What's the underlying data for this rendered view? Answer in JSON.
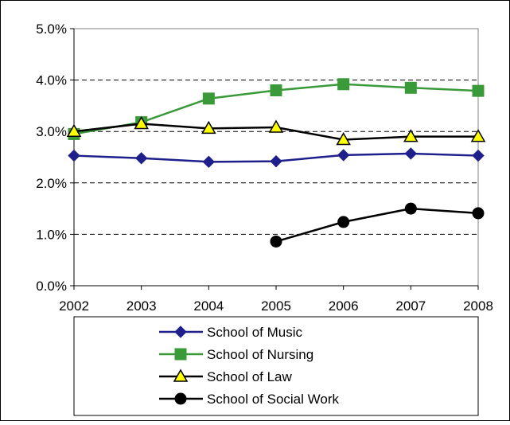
{
  "chart_data": {
    "type": "line",
    "title": "",
    "xlabel": "",
    "ylabel": "",
    "x": [
      2002,
      2003,
      2004,
      2005,
      2006,
      2007,
      2008
    ],
    "x_tick_labels": [
      "2002",
      "2003",
      "2004",
      "2005",
      "2006",
      "2007",
      "2008"
    ],
    "ylim": [
      0,
      0.05
    ],
    "y_ticks": [
      0,
      0.01,
      0.02,
      0.03,
      0.04,
      0.05
    ],
    "y_tick_labels": [
      "0.0%",
      "1.0%",
      "2.0%",
      "3.0%",
      "4.0%",
      "5.0%"
    ],
    "grid": "horizontal dashed",
    "legend_position": "bottom",
    "series": [
      {
        "name": "School of Music",
        "color": "#1f1f8c",
        "marker": "diamond",
        "values": [
          0.0253,
          0.0248,
          0.0241,
          0.0242,
          0.0254,
          0.0257,
          0.0253
        ]
      },
      {
        "name": "School of Nursing",
        "color": "#3a9a3a",
        "marker": "square",
        "values": [
          0.0295,
          0.0318,
          0.0364,
          0.038,
          0.0392,
          0.0385,
          0.0379
        ]
      },
      {
        "name": "School of Law",
        "color": "#000000",
        "marker": "triangle",
        "marker_fill": "#ffff00",
        "values": [
          0.03,
          0.0315,
          0.0306,
          0.0308,
          0.0284,
          0.029,
          0.029
        ]
      },
      {
        "name": "School of Social Work",
        "color": "#000000",
        "marker": "circle",
        "values": [
          null,
          null,
          null,
          0.0086,
          0.0124,
          0.015,
          0.0141
        ]
      }
    ]
  }
}
